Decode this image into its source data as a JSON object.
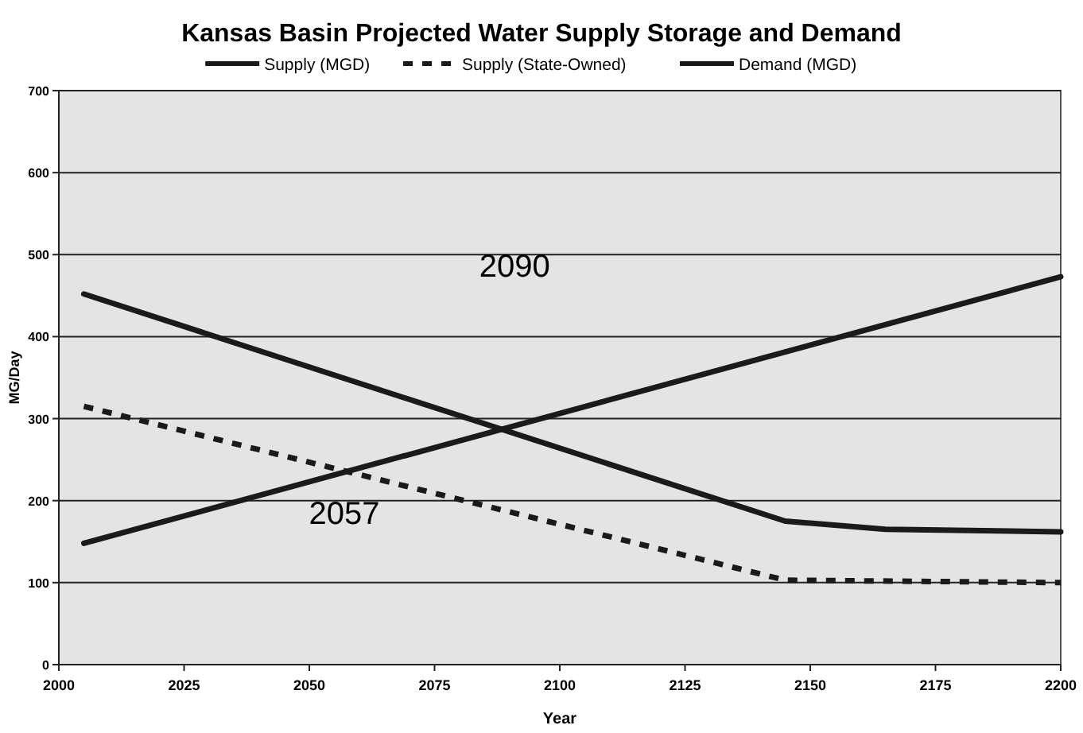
{
  "chart_data": {
    "type": "line",
    "title": "Kansas Basin Projected Water Supply Storage and Demand",
    "xlabel": "Year",
    "ylabel": "MG/Day",
    "xlim": [
      2000,
      2200
    ],
    "xticks": [
      2000,
      2025,
      2050,
      2075,
      2100,
      2125,
      2150,
      2175,
      2200
    ],
    "ylim": [
      0,
      700
    ],
    "yticks": [
      0,
      100,
      200,
      300,
      400,
      500,
      600,
      700
    ],
    "grid": "y",
    "legend": "top",
    "series": [
      {
        "name": "Supply (MGD)",
        "color": "#1a1a1a",
        "line_style": "solid",
        "x": [
          2005,
          2145,
          2165,
          2200
        ],
        "values": [
          452,
          175,
          165,
          162
        ]
      },
      {
        "name": "Supply (State-Owned)",
        "color": "#1a1a1a",
        "line_style": "dashed",
        "x": [
          2005,
          2145,
          2200
        ],
        "values": [
          315,
          103,
          100
        ]
      },
      {
        "name": "Demand (MGD)",
        "color": "#1a1a1a",
        "line_style": "solid",
        "x": [
          2005,
          2200
        ],
        "values": [
          148,
          473
        ]
      }
    ],
    "annotations": [
      "2090",
      "2057"
    ]
  }
}
